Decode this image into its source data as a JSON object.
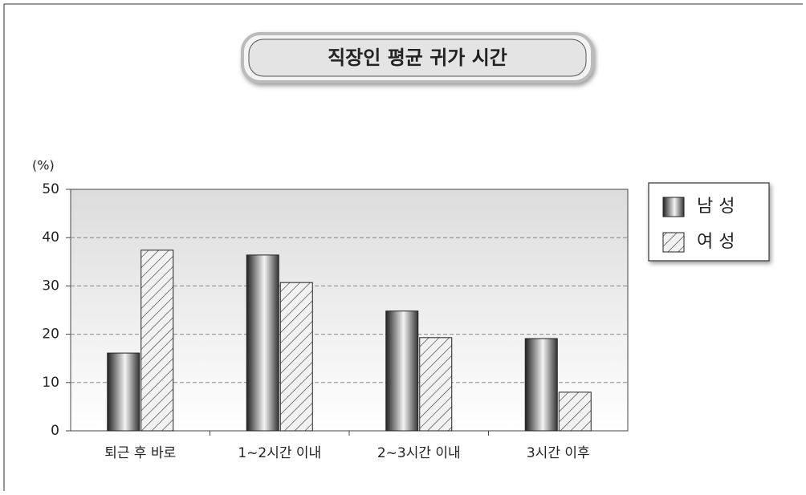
{
  "chart_data": {
    "type": "bar",
    "title": "직장인 평균 귀가 시간",
    "y_label": "(%)",
    "categories": [
      "퇴근 후 바로",
      "1~2시간 이내",
      "2~3시간 이내",
      "3시간 이후"
    ],
    "series": [
      {
        "name": "남 성",
        "color": "#555555",
        "values": [
          16.1,
          36.4,
          24.8,
          19.1
        ]
      },
      {
        "name": "여 성",
        "color": "#dddddd",
        "values": [
          37.4,
          30.7,
          19.3,
          8.0
        ]
      }
    ],
    "ylim": [
      0,
      50
    ],
    "yticks": [
      0,
      10,
      20,
      30,
      40,
      50
    ],
    "grid": true,
    "legend": "right"
  }
}
